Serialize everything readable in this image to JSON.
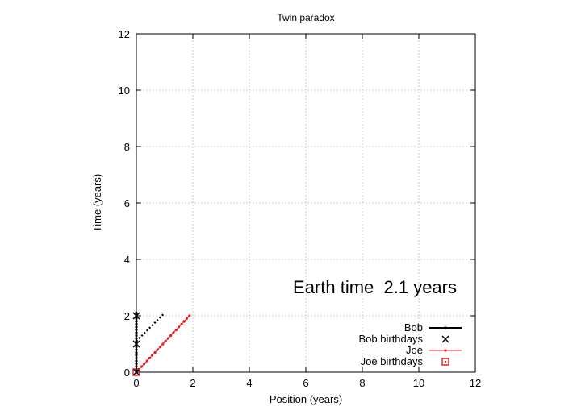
{
  "chart_data": {
    "type": "line",
    "title": "Twin paradox",
    "xlabel": "Position (years)",
    "ylabel": "Time (years)",
    "xlim": [
      0,
      12
    ],
    "ylim": [
      0,
      12
    ],
    "xticks": [
      "0",
      "2",
      "4",
      "6",
      "8",
      "10",
      "12"
    ],
    "yticks": [
      "0",
      "2",
      "4",
      "6",
      "8",
      "10",
      "12"
    ],
    "grid": true,
    "legend_position": "bottom-right",
    "annotation": "Earth time  2.1 years",
    "colors": {
      "bob": "#000000",
      "joe": "#e8191b"
    },
    "series": [
      {
        "name": "Bob",
        "style": "line-with-points",
        "x": [
          0,
          0,
          0,
          0,
          0,
          0,
          0,
          0,
          0,
          0,
          0,
          0,
          0,
          0,
          0,
          0,
          0,
          0,
          0,
          0,
          0,
          0
        ],
        "y": [
          0,
          0.1,
          0.2,
          0.3,
          0.4,
          0.5,
          0.6,
          0.7,
          0.8,
          0.9,
          1.0,
          1.1,
          1.2,
          1.3,
          1.4,
          1.5,
          1.6,
          1.7,
          1.8,
          1.9,
          2.0,
          2.1
        ]
      },
      {
        "name": "Bob birthdays",
        "style": "x-markers",
        "x": [
          0,
          0,
          0
        ],
        "y": [
          0,
          1,
          2
        ]
      },
      {
        "name": "Joe",
        "style": "line-with-points",
        "x": [
          0,
          0.09,
          0.19,
          0.28,
          0.38,
          0.47,
          0.56,
          0.66,
          0.75,
          0.85,
          0.94,
          1.03,
          1.13,
          1.22,
          1.31,
          1.41,
          1.5,
          1.6,
          1.69,
          1.78,
          1.88
        ],
        "y": [
          0,
          0.1,
          0.2,
          0.3,
          0.4,
          0.5,
          0.6,
          0.7,
          0.8,
          0.9,
          1.0,
          1.1,
          1.2,
          1.3,
          1.4,
          1.5,
          1.6,
          1.7,
          1.8,
          1.9,
          2.0
        ]
      },
      {
        "name": "Joe birthdays",
        "style": "square-markers",
        "x": [
          0
        ],
        "y": [
          0
        ]
      },
      {
        "style": "dotted",
        "x": [
          0,
          0.1,
          0.2,
          0.3,
          0.4,
          0.5,
          0.6,
          0.7,
          0.8,
          0.9,
          1.0
        ],
        "y": [
          1.1,
          1.2,
          1.3,
          1.4,
          1.5,
          1.6,
          1.7,
          1.8,
          1.9,
          2.0,
          2.1
        ]
      }
    ]
  }
}
